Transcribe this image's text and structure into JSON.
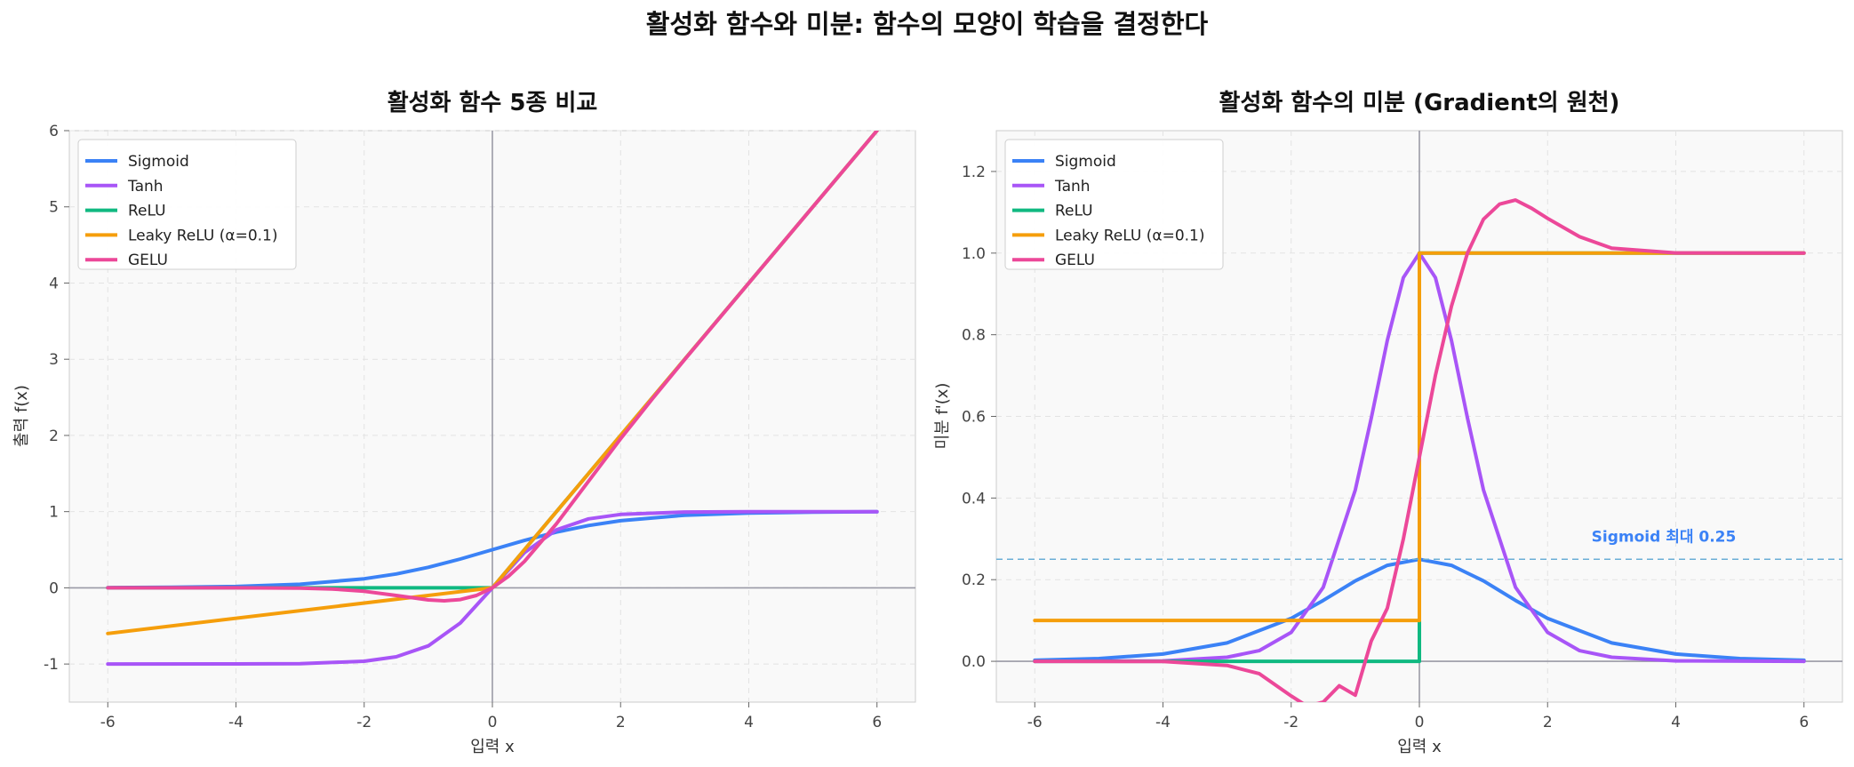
{
  "figure": {
    "suptitle": "활성화 함수와 미분: 함수의 모양이 학습을 결정한다"
  },
  "colors": {
    "Sigmoid": "#3b82f6",
    "Tanh": "#a855f7",
    "ReLU": "#10b981",
    "Leaky ReLU (α=0.1)": "#f59e0b",
    "GELU": "#ec4899",
    "panel_bg": "#f9f9f9",
    "annotation": "#3b82f6"
  },
  "chart_data": [
    {
      "type": "line",
      "title": "활성화 함수 5종 비교",
      "xlabel": "입력 x",
      "ylabel": "출력 f(x)",
      "xlim": [
        -6.6,
        6.6
      ],
      "ylim": [
        -1.5,
        6
      ],
      "xticks": [
        "-6",
        "-4",
        "-2",
        "0",
        "2",
        "4",
        "6"
      ],
      "yticks": [
        "-1",
        "0",
        "1",
        "2",
        "3",
        "4",
        "5",
        "6"
      ],
      "grid": true,
      "legend": "upper-left",
      "series": [
        {
          "name": "Sigmoid",
          "x": [
            -6,
            -5,
            -4,
            -3,
            -2,
            -1.5,
            -1,
            -0.5,
            0,
            0.5,
            1,
            1.5,
            2,
            3,
            4,
            5,
            6
          ],
          "y": [
            0.002,
            0.007,
            0.018,
            0.047,
            0.119,
            0.182,
            0.269,
            0.378,
            0.5,
            0.622,
            0.731,
            0.818,
            0.881,
            0.953,
            0.982,
            0.993,
            0.998
          ]
        },
        {
          "name": "Tanh",
          "x": [
            -6,
            -4,
            -3,
            -2,
            -1.5,
            -1,
            -0.5,
            0,
            0.5,
            1,
            1.5,
            2,
            3,
            4,
            6
          ],
          "y": [
            -1.0,
            -0.999,
            -0.995,
            -0.964,
            -0.905,
            -0.762,
            -0.462,
            0,
            0.462,
            0.762,
            0.905,
            0.964,
            0.995,
            0.999,
            1.0
          ]
        },
        {
          "name": "ReLU",
          "x": [
            -6,
            0,
            6
          ],
          "y": [
            0,
            0,
            6
          ]
        },
        {
          "name": "Leaky ReLU (α=0.1)",
          "x": [
            -6,
            0,
            6
          ],
          "y": [
            -0.6,
            0,
            6
          ]
        },
        {
          "name": "GELU",
          "x": [
            -6,
            -4,
            -3,
            -2.5,
            -2,
            -1.5,
            -1,
            -0.75,
            -0.5,
            -0.25,
            0,
            0.25,
            0.5,
            1,
            1.5,
            2,
            2.5,
            3,
            4,
            6
          ],
          "y": [
            0,
            0,
            -0.004,
            -0.015,
            -0.045,
            -0.1,
            -0.159,
            -0.17,
            -0.154,
            -0.1,
            0,
            0.15,
            0.346,
            0.841,
            1.4,
            1.955,
            2.485,
            2.996,
            4.0,
            6.0
          ]
        }
      ]
    },
    {
      "type": "line",
      "title": "활성화 함수의 미분 (Gradient의 원천)",
      "xlabel": "입력 x",
      "ylabel": "미분 f'(x)",
      "xlim": [
        -6.6,
        6.6
      ],
      "ylim": [
        -0.1,
        1.3
      ],
      "xticks": [
        "-6",
        "-4",
        "-2",
        "0",
        "2",
        "4",
        "6"
      ],
      "yticks": [
        "0.0",
        "0.2",
        "0.4",
        "0.6",
        "0.8",
        "1.0",
        "1.2"
      ],
      "grid": true,
      "legend": "upper-left",
      "series": [
        {
          "name": "Sigmoid",
          "x": [
            -6,
            -5,
            -4,
            -3,
            -2,
            -1.5,
            -1,
            -0.5,
            0,
            0.5,
            1,
            1.5,
            2,
            3,
            4,
            5,
            6
          ],
          "y": [
            0.0025,
            0.0066,
            0.0177,
            0.045,
            0.105,
            0.149,
            0.197,
            0.235,
            0.25,
            0.235,
            0.197,
            0.149,
            0.105,
            0.045,
            0.0177,
            0.0066,
            0.0025
          ]
        },
        {
          "name": "Tanh",
          "x": [
            -6,
            -4,
            -3,
            -2.5,
            -2,
            -1.5,
            -1,
            -0.75,
            -0.5,
            -0.25,
            0,
            0.25,
            0.5,
            0.75,
            1,
            1.5,
            2,
            2.5,
            3,
            4,
            6
          ],
          "y": [
            0,
            0.001,
            0.01,
            0.026,
            0.071,
            0.181,
            0.42,
            0.596,
            0.786,
            0.94,
            1.0,
            0.94,
            0.786,
            0.596,
            0.42,
            0.181,
            0.071,
            0.026,
            0.01,
            0.001,
            0
          ]
        },
        {
          "name": "ReLU",
          "x": [
            -6,
            0,
            0,
            6
          ],
          "y": [
            0,
            0,
            1,
            1
          ]
        },
        {
          "name": "Leaky ReLU (α=0.1)",
          "x": [
            -6,
            0,
            0,
            6
          ],
          "y": [
            0.1,
            0.1,
            1,
            1
          ]
        },
        {
          "name": "GELU",
          "x": [
            -6,
            -4,
            -3,
            -2.5,
            -2,
            -1.75,
            -1.5,
            -1.25,
            -1,
            -0.75,
            -0.5,
            -0.25,
            0,
            0.25,
            0.5,
            0.75,
            1,
            1.25,
            1.5,
            1.75,
            2,
            2.5,
            3,
            4,
            6
          ],
          "y": [
            0,
            -0.0005,
            -0.01,
            -0.03,
            -0.085,
            -0.11,
            -0.1,
            -0.06,
            -0.083,
            0.05,
            0.13,
            0.3,
            0.5,
            0.7,
            0.87,
            1.0,
            1.083,
            1.12,
            1.13,
            1.11,
            1.085,
            1.04,
            1.012,
            1.0005,
            1.0
          ]
        }
      ],
      "reference_line": {
        "y": 0.25,
        "label": "Sigmoid 최대 0.25"
      }
    }
  ]
}
